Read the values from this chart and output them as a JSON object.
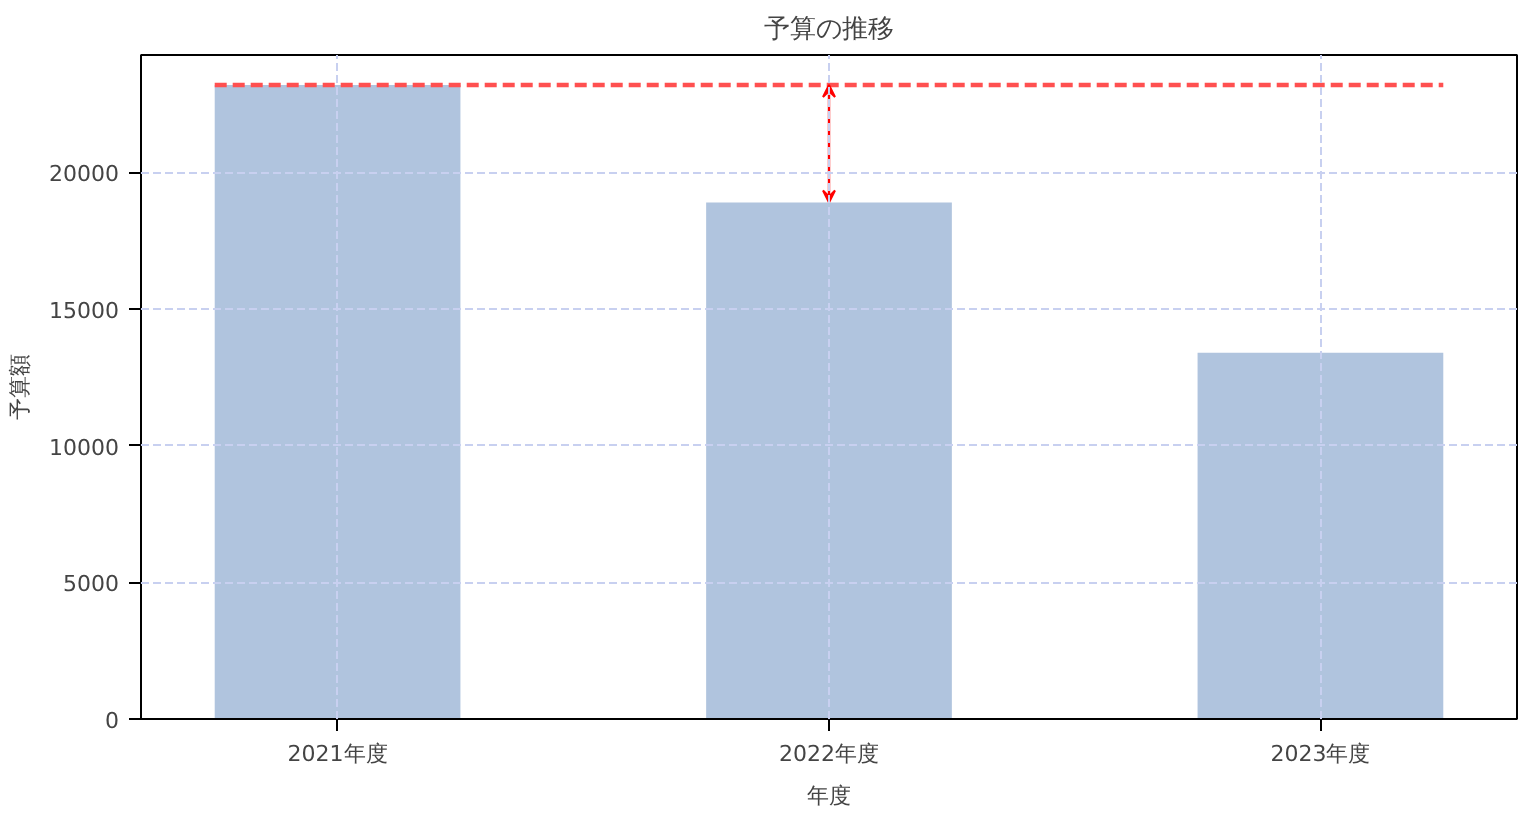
{
  "chart_data": {
    "type": "bar",
    "title": "予算の推移",
    "xlabel": "年度",
    "ylabel": "予算額",
    "categories": [
      "2021年度",
      "2022年度",
      "2023年度"
    ],
    "values": [
      23200,
      18900,
      13400
    ],
    "color": "#b0c4de",
    "ylim": [
      0,
      24300
    ],
    "yticks": [
      0,
      5000,
      10000,
      15000,
      20000
    ],
    "grid": true,
    "ref_lines": [
      {
        "axis": "y",
        "value": 23200,
        "label": null,
        "color": "#ff5050",
        "line_style": "dashed"
      }
    ]
  }
}
